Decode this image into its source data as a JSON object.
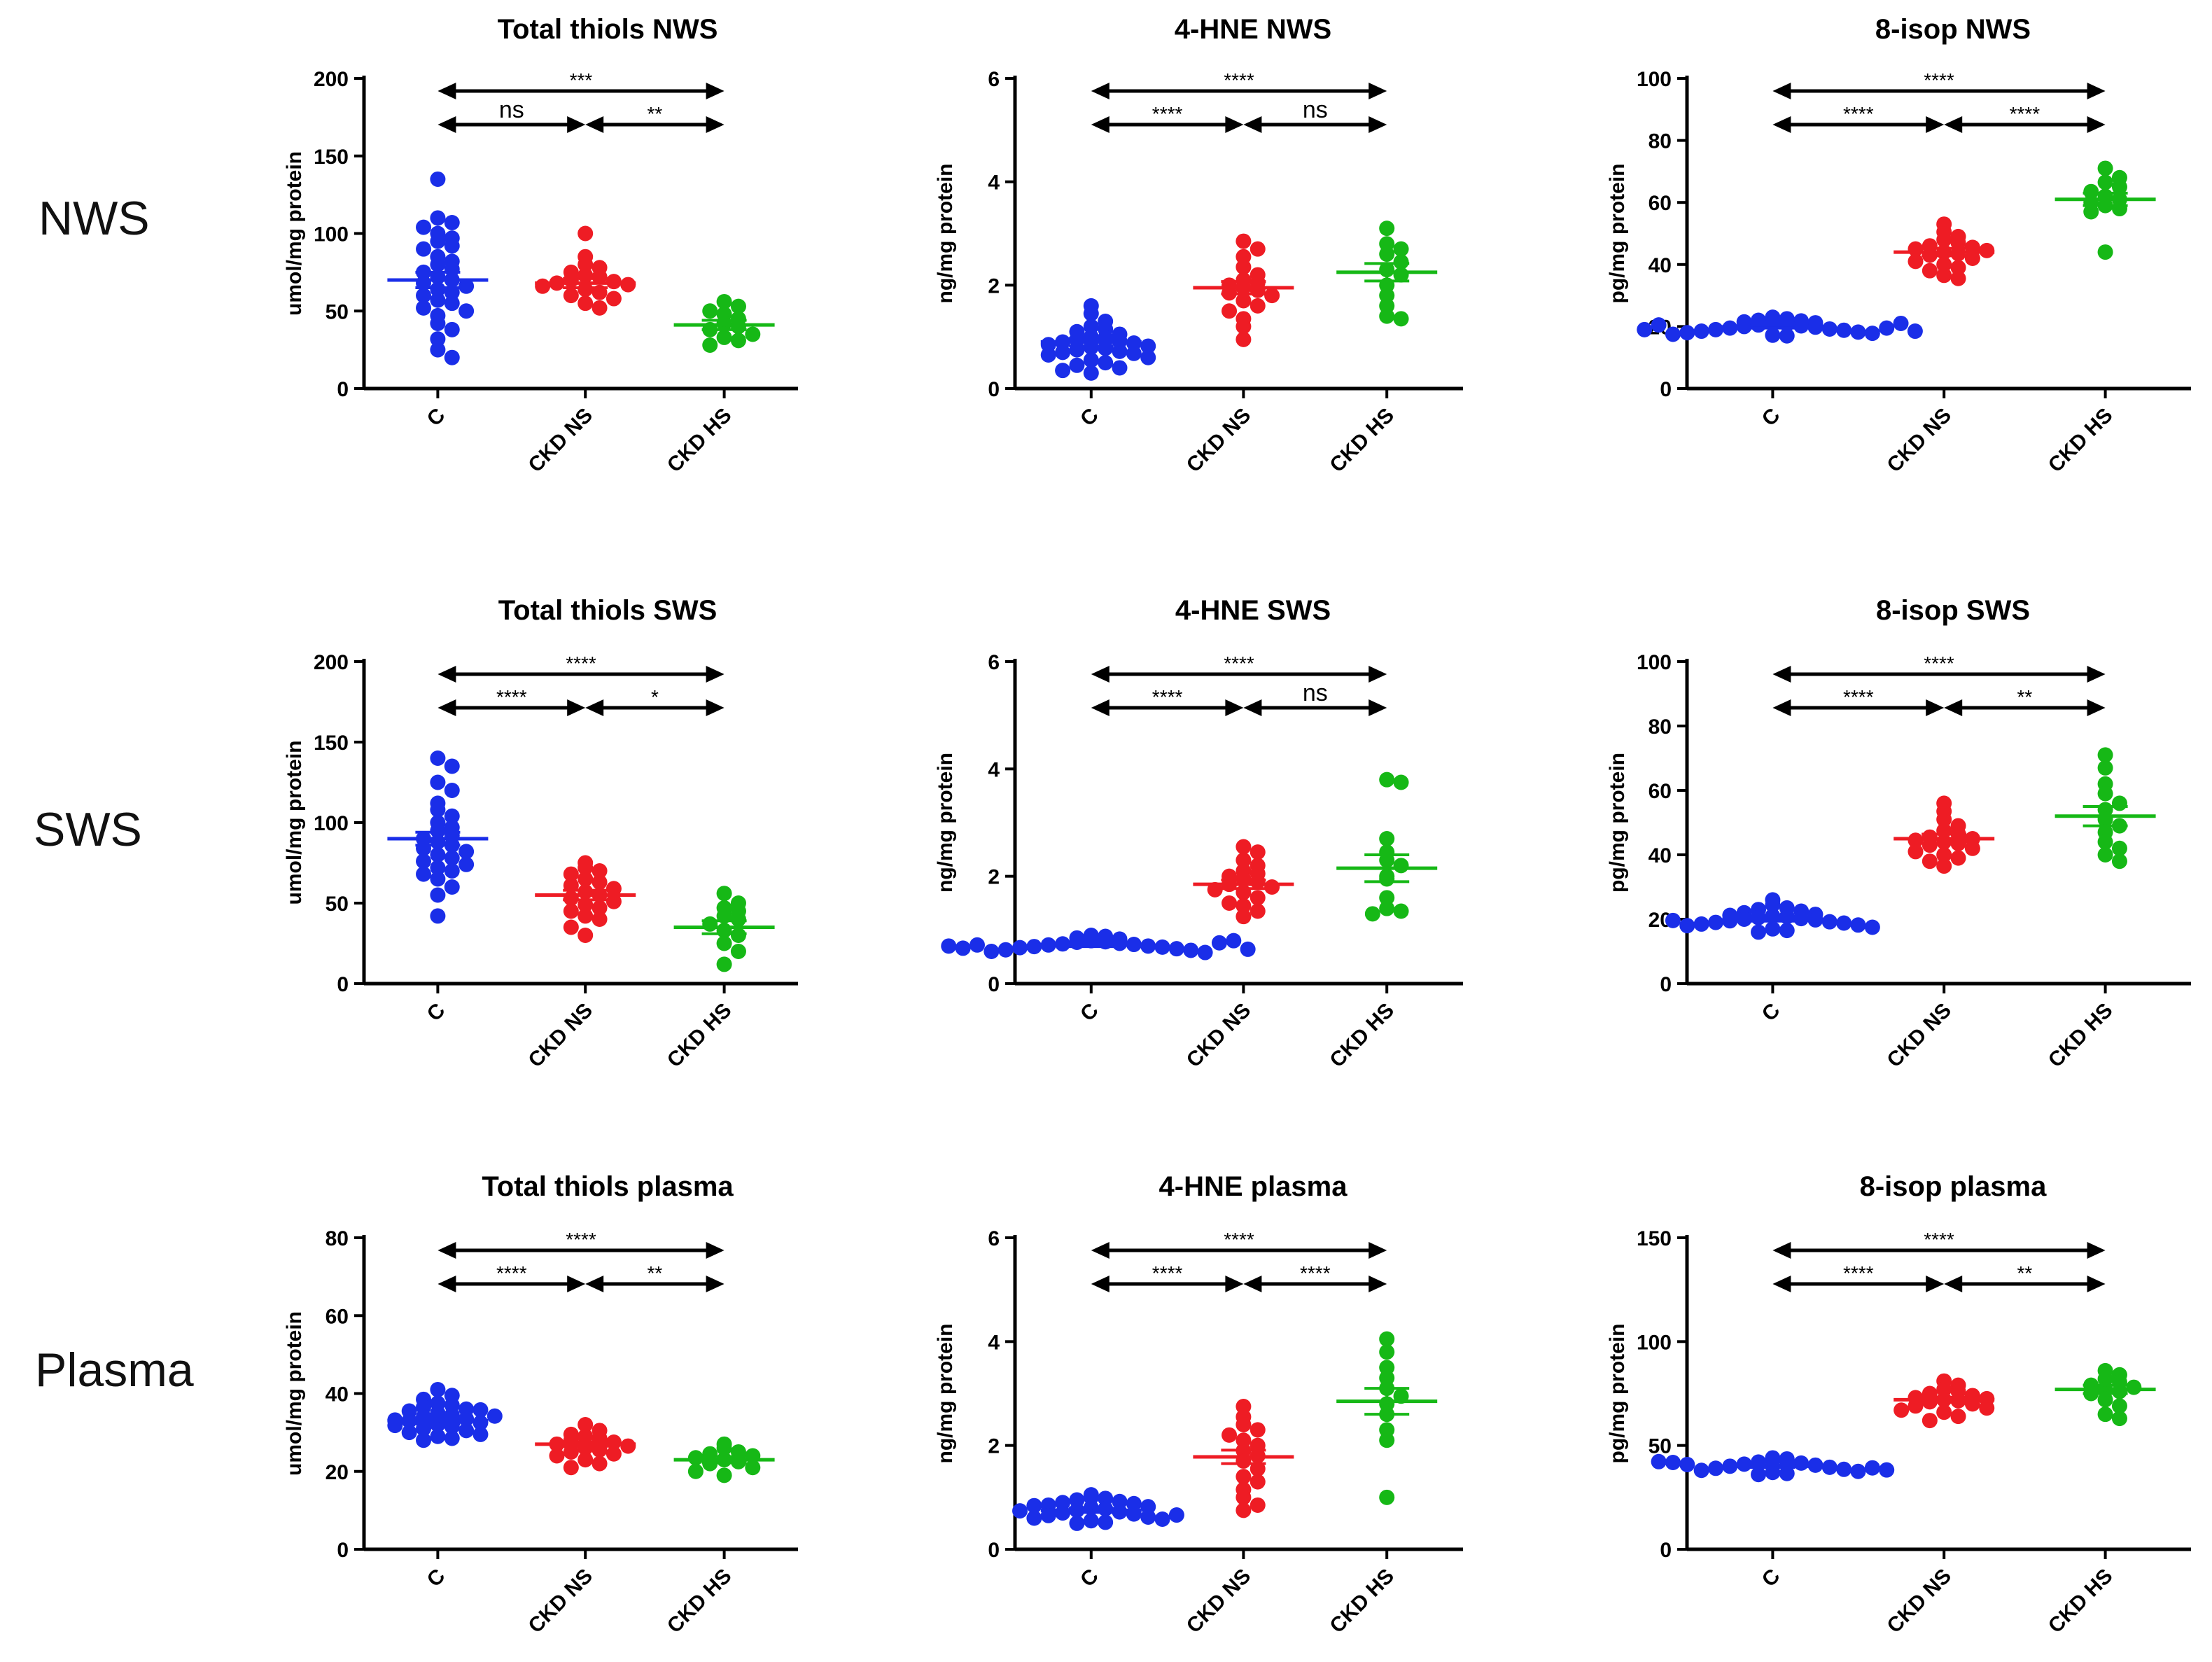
{
  "row_labels": [
    "NWS",
    "SWS",
    "Plasma"
  ],
  "colors": {
    "C": "#1a2ee8",
    "CKD NS": "#ee1c24",
    "CKD HS": "#16b816"
  },
  "chart_data": [
    {
      "type": "scatter",
      "title": "Total thiols NWS",
      "ylabel": "umol/mg protein",
      "ylim": [
        0,
        200
      ],
      "yticks": [
        0,
        50,
        100,
        150,
        200
      ],
      "categories": [
        "C",
        "CKD NS",
        "CKD HS"
      ],
      "series": [
        {
          "name": "C",
          "mean": 70,
          "sem": 5,
          "values": [
            135,
            110,
            107,
            104,
            100,
            97,
            95,
            92,
            90,
            85,
            82,
            80,
            77,
            75,
            72,
            70,
            68,
            66,
            64,
            62,
            60,
            57,
            55,
            52,
            50,
            47,
            42,
            38,
            32,
            25,
            20
          ]
        },
        {
          "name": "CKD NS",
          "mean": 68,
          "sem": 3,
          "values": [
            100,
            85,
            80,
            78,
            75,
            73,
            72,
            70,
            69,
            68,
            67,
            66,
            64,
            62,
            60,
            58,
            55,
            52
          ]
        },
        {
          "name": "CKD HS",
          "mean": 41,
          "sem": 3,
          "values": [
            56,
            53,
            50,
            48,
            45,
            42,
            40,
            38,
            35,
            33,
            31,
            28
          ]
        }
      ],
      "comparisons": [
        {
          "from": "C",
          "to": "CKD HS",
          "label": "***"
        },
        {
          "from": "C",
          "to": "CKD NS",
          "label": "ns"
        },
        {
          "from": "CKD NS",
          "to": "CKD HS",
          "label": "**"
        }
      ]
    },
    {
      "type": "scatter",
      "title": "4-HNE NWS",
      "ylabel": "ng/mg protein",
      "ylim": [
        0,
        6
      ],
      "yticks": [
        0,
        2,
        4,
        6
      ],
      "categories": [
        "C",
        "CKD NS",
        "CKD HS"
      ],
      "series": [
        {
          "name": "C",
          "mean": 0.9,
          "sem": 0.07,
          "values": [
            1.6,
            1.45,
            1.3,
            1.2,
            1.15,
            1.1,
            1.05,
            1.0,
            0.98,
            0.95,
            0.92,
            0.9,
            0.88,
            0.85,
            0.82,
            0.8,
            0.78,
            0.75,
            0.72,
            0.7,
            0.68,
            0.65,
            0.6,
            0.55,
            0.5,
            0.45,
            0.4,
            0.35,
            0.3
          ]
        },
        {
          "name": "CKD NS",
          "mean": 1.95,
          "sem": 0.12,
          "values": [
            2.85,
            2.7,
            2.55,
            2.35,
            2.2,
            2.1,
            2.05,
            2.0,
            1.95,
            1.9,
            1.85,
            1.8,
            1.7,
            1.6,
            1.5,
            1.35,
            1.2,
            0.95
          ]
        },
        {
          "name": "CKD HS",
          "mean": 2.25,
          "sem": 0.17,
          "values": [
            3.1,
            2.8,
            2.7,
            2.6,
            2.45,
            2.3,
            2.2,
            2.0,
            1.8,
            1.6,
            1.4,
            1.35
          ]
        }
      ],
      "comparisons": [
        {
          "from": "C",
          "to": "CKD HS",
          "label": "****"
        },
        {
          "from": "C",
          "to": "CKD NS",
          "label": "****"
        },
        {
          "from": "CKD NS",
          "to": "CKD HS",
          "label": "ns"
        }
      ]
    },
    {
      "type": "scatter",
      "title": "8-isop NWS",
      "ylabel": "pg/mg protein",
      "ylim": [
        0,
        100
      ],
      "yticks": [
        0,
        20,
        40,
        60,
        80,
        100
      ],
      "categories": [
        "C",
        "CKD NS",
        "CKD HS"
      ],
      "series": [
        {
          "name": "C",
          "mean": 20,
          "sem": 0.5,
          "values": [
            23,
            22.5,
            22,
            21.8,
            21.5,
            21.2,
            21,
            20.8,
            20.5,
            20.2,
            20,
            19.8,
            19.5,
            19.2,
            19,
            18.8,
            18.5,
            18.2,
            18,
            17.8,
            17.5,
            17.2,
            17,
            19.5,
            20.5,
            21,
            19,
            18.5
          ]
        },
        {
          "name": "CKD NS",
          "mean": 44,
          "sem": 1.2,
          "values": [
            53,
            50.5,
            49,
            48,
            47,
            46,
            45.5,
            45,
            44.5,
            44,
            43.5,
            43,
            42,
            41,
            40,
            39,
            38,
            36.5,
            35.5
          ]
        },
        {
          "name": "CKD HS",
          "mean": 61,
          "sem": 2.0,
          "values": [
            71,
            68,
            66.5,
            65,
            63.5,
            62,
            61,
            60,
            59,
            58,
            57,
            44
          ]
        }
      ],
      "comparisons": [
        {
          "from": "C",
          "to": "CKD HS",
          "label": "****"
        },
        {
          "from": "C",
          "to": "CKD NS",
          "label": "****"
        },
        {
          "from": "CKD NS",
          "to": "CKD HS",
          "label": "****"
        }
      ]
    },
    {
      "type": "scatter",
      "title": "Total thiols SWS",
      "ylabel": "umol/mg protein",
      "ylim": [
        0,
        200
      ],
      "yticks": [
        0,
        50,
        100,
        150,
        200
      ],
      "categories": [
        "C",
        "CKD NS",
        "CKD HS"
      ],
      "series": [
        {
          "name": "C",
          "mean": 90,
          "sem": 4,
          "values": [
            140,
            135,
            125,
            120,
            112,
            108,
            104,
            100,
            97,
            95,
            92,
            90,
            88,
            86,
            84,
            82,
            80,
            78,
            76,
            74,
            72,
            70,
            68,
            65,
            60,
            55,
            42
          ]
        },
        {
          "name": "CKD NS",
          "mean": 55,
          "sem": 3,
          "values": [
            75,
            72,
            70,
            68,
            65,
            63,
            61,
            59,
            57,
            55,
            53,
            51,
            49,
            47,
            45,
            42,
            40,
            35,
            30
          ]
        },
        {
          "name": "CKD HS",
          "mean": 35,
          "sem": 4,
          "values": [
            56,
            50,
            47,
            45,
            42,
            40,
            37,
            33,
            30,
            25,
            20,
            12
          ]
        }
      ],
      "comparisons": [
        {
          "from": "C",
          "to": "CKD HS",
          "label": "****"
        },
        {
          "from": "C",
          "to": "CKD NS",
          "label": "****"
        },
        {
          "from": "CKD NS",
          "to": "CKD HS",
          "label": "*"
        }
      ]
    },
    {
      "type": "scatter",
      "title": "4-HNE SWS",
      "ylabel": "ng/mg protein",
      "ylim": [
        0,
        6
      ],
      "yticks": [
        0,
        2,
        4,
        6
      ],
      "categories": [
        "C",
        "CKD NS",
        "CKD HS"
      ],
      "series": [
        {
          "name": "C",
          "mean": 0.72,
          "sem": 0.03,
          "values": [
            0.9,
            0.88,
            0.85,
            0.83,
            0.8,
            0.78,
            0.77,
            0.75,
            0.74,
            0.73,
            0.72,
            0.7,
            0.69,
            0.68,
            0.67,
            0.65,
            0.63,
            0.62,
            0.6,
            0.58,
            0.72,
            0.76,
            0.66,
            0.8,
            0.7,
            0.64
          ]
        },
        {
          "name": "CKD NS",
          "mean": 1.85,
          "sem": 0.08,
          "values": [
            2.55,
            2.45,
            2.3,
            2.2,
            2.1,
            2.05,
            2.0,
            1.95,
            1.9,
            1.85,
            1.8,
            1.75,
            1.7,
            1.6,
            1.5,
            1.45,
            1.35,
            1.25
          ]
        },
        {
          "name": "CKD HS",
          "mean": 2.15,
          "sem": 0.25,
          "values": [
            3.8,
            3.75,
            2.7,
            2.45,
            2.3,
            2.2,
            2.0,
            1.95,
            1.6,
            1.4,
            1.35,
            1.3
          ]
        }
      ],
      "comparisons": [
        {
          "from": "C",
          "to": "CKD HS",
          "label": "****"
        },
        {
          "from": "C",
          "to": "CKD NS",
          "label": "****"
        },
        {
          "from": "CKD NS",
          "to": "CKD HS",
          "label": "ns"
        }
      ]
    },
    {
      "type": "scatter",
      "title": "8-isop SWS",
      "ylabel": "pg/mg protein",
      "ylim": [
        0,
        100
      ],
      "yticks": [
        0,
        20,
        40,
        60,
        80,
        100
      ],
      "categories": [
        "C",
        "CKD NS",
        "CKD HS"
      ],
      "series": [
        {
          "name": "C",
          "mean": 20,
          "sem": 0.6,
          "values": [
            26,
            24.5,
            23.5,
            23,
            22.5,
            22,
            21.5,
            21,
            20.8,
            20.5,
            20.2,
            20,
            19.8,
            19.5,
            19.2,
            19,
            18.8,
            18.5,
            18.2,
            18,
            17.5,
            17,
            16.5,
            16,
            21.2,
            19.6
          ]
        },
        {
          "name": "CKD NS",
          "mean": 45,
          "sem": 1.4,
          "values": [
            56,
            53.5,
            51,
            49,
            47.5,
            46.5,
            45.5,
            45,
            44.5,
            44,
            43.5,
            43,
            42,
            41,
            40,
            39,
            38,
            36.5
          ]
        },
        {
          "name": "CKD HS",
          "mean": 52,
          "sem": 3,
          "values": [
            71,
            67,
            62,
            59,
            56,
            54,
            51,
            49,
            47,
            44,
            42,
            40,
            38
          ]
        }
      ],
      "comparisons": [
        {
          "from": "C",
          "to": "CKD HS",
          "label": "****"
        },
        {
          "from": "C",
          "to": "CKD NS",
          "label": "****"
        },
        {
          "from": "CKD NS",
          "to": "CKD HS",
          "label": "**"
        }
      ]
    },
    {
      "type": "scatter",
      "title": "Total thiols plasma",
      "ylabel": "umol/mg protein",
      "ylim": [
        0,
        80
      ],
      "yticks": [
        0,
        20,
        40,
        60,
        80
      ],
      "categories": [
        "C",
        "CKD NS",
        "CKD HS"
      ],
      "series": [
        {
          "name": "C",
          "mean": 33,
          "sem": 0.8,
          "values": [
            41,
            39.5,
            38.5,
            37.5,
            37,
            36.5,
            36,
            35.5,
            35,
            34.5,
            34,
            33.5,
            33,
            32.5,
            32,
            31.5,
            31,
            30.5,
            30,
            29.5,
            29,
            28.5,
            28,
            33.2,
            34.2,
            31.8,
            35.8
          ]
        },
        {
          "name": "CKD NS",
          "mean": 27,
          "sem": 0.6,
          "values": [
            32,
            30.5,
            29.5,
            29,
            28.5,
            28,
            27.5,
            27,
            26.5,
            26,
            25.5,
            25,
            24.5,
            24,
            23,
            22,
            21
          ]
        },
        {
          "name": "CKD HS",
          "mean": 23,
          "sem": 0.8,
          "values": [
            27,
            26,
            25,
            24.5,
            24,
            23.5,
            23,
            22.5,
            22,
            21,
            20,
            19
          ]
        }
      ],
      "comparisons": [
        {
          "from": "C",
          "to": "CKD HS",
          "label": "****"
        },
        {
          "from": "C",
          "to": "CKD NS",
          "label": "****"
        },
        {
          "from": "CKD NS",
          "to": "CKD HS",
          "label": "**"
        }
      ]
    },
    {
      "type": "scatter",
      "title": "4-HNE plasma",
      "ylabel": "ng/mg protein",
      "ylim": [
        0,
        6
      ],
      "yticks": [
        0,
        2,
        4,
        6
      ],
      "categories": [
        "C",
        "CKD NS",
        "CKD HS"
      ],
      "series": [
        {
          "name": "C",
          "mean": 0.75,
          "sem": 0.04,
          "values": [
            1.05,
            1.0,
            0.98,
            0.95,
            0.92,
            0.9,
            0.88,
            0.85,
            0.82,
            0.8,
            0.78,
            0.75,
            0.72,
            0.7,
            0.68,
            0.65,
            0.62,
            0.6,
            0.58,
            0.55,
            0.52,
            0.5,
            0.74,
            0.84,
            0.66
          ]
        },
        {
          "name": "CKD NS",
          "mean": 1.78,
          "sem": 0.13,
          "values": [
            2.75,
            2.55,
            2.4,
            2.3,
            2.2,
            2.1,
            2.0,
            1.9,
            1.8,
            1.7,
            1.55,
            1.4,
            1.3,
            1.15,
            1.0,
            0.85,
            0.75
          ]
        },
        {
          "name": "CKD HS",
          "mean": 2.85,
          "sem": 0.25,
          "values": [
            4.05,
            3.8,
            3.5,
            3.3,
            3.1,
            2.95,
            2.8,
            2.6,
            2.3,
            2.1,
            1.0
          ]
        }
      ],
      "comparisons": [
        {
          "from": "C",
          "to": "CKD HS",
          "label": "****"
        },
        {
          "from": "C",
          "to": "CKD NS",
          "label": "****"
        },
        {
          "from": "CKD NS",
          "to": "CKD HS",
          "label": "****"
        }
      ]
    },
    {
      "type": "scatter",
      "title": "8-isop plasma",
      "ylabel": "pg/mg protein",
      "ylim": [
        0,
        150
      ],
      "yticks": [
        0,
        50,
        100,
        150
      ],
      "categories": [
        "C",
        "CKD NS",
        "CKD HS"
      ],
      "series": [
        {
          "name": "C",
          "mean": 40,
          "sem": 0.6,
          "values": [
            44,
            43.5,
            43,
            42.5,
            42,
            41.5,
            41,
            40.5,
            40,
            39.5,
            39,
            38.5,
            38,
            37.5,
            37,
            36.5,
            36,
            40.8,
            39.2,
            41.8,
            38.2,
            42.2
          ]
        },
        {
          "name": "CKD NS",
          "mean": 72,
          "sem": 1.2,
          "values": [
            81,
            79,
            77,
            76,
            75,
            74,
            73,
            72.5,
            72,
            71.5,
            71,
            70,
            69,
            68,
            67,
            66,
            64,
            62
          ]
        },
        {
          "name": "CKD HS",
          "mean": 77,
          "sem": 2.0,
          "values": [
            86,
            84,
            82,
            80.5,
            79,
            78,
            77,
            76,
            75,
            72,
            69,
            65,
            63
          ]
        }
      ],
      "comparisons": [
        {
          "from": "C",
          "to": "CKD HS",
          "label": "****"
        },
        {
          "from": "C",
          "to": "CKD NS",
          "label": "****"
        },
        {
          "from": "CKD NS",
          "to": "CKD HS",
          "label": "**"
        }
      ]
    }
  ]
}
